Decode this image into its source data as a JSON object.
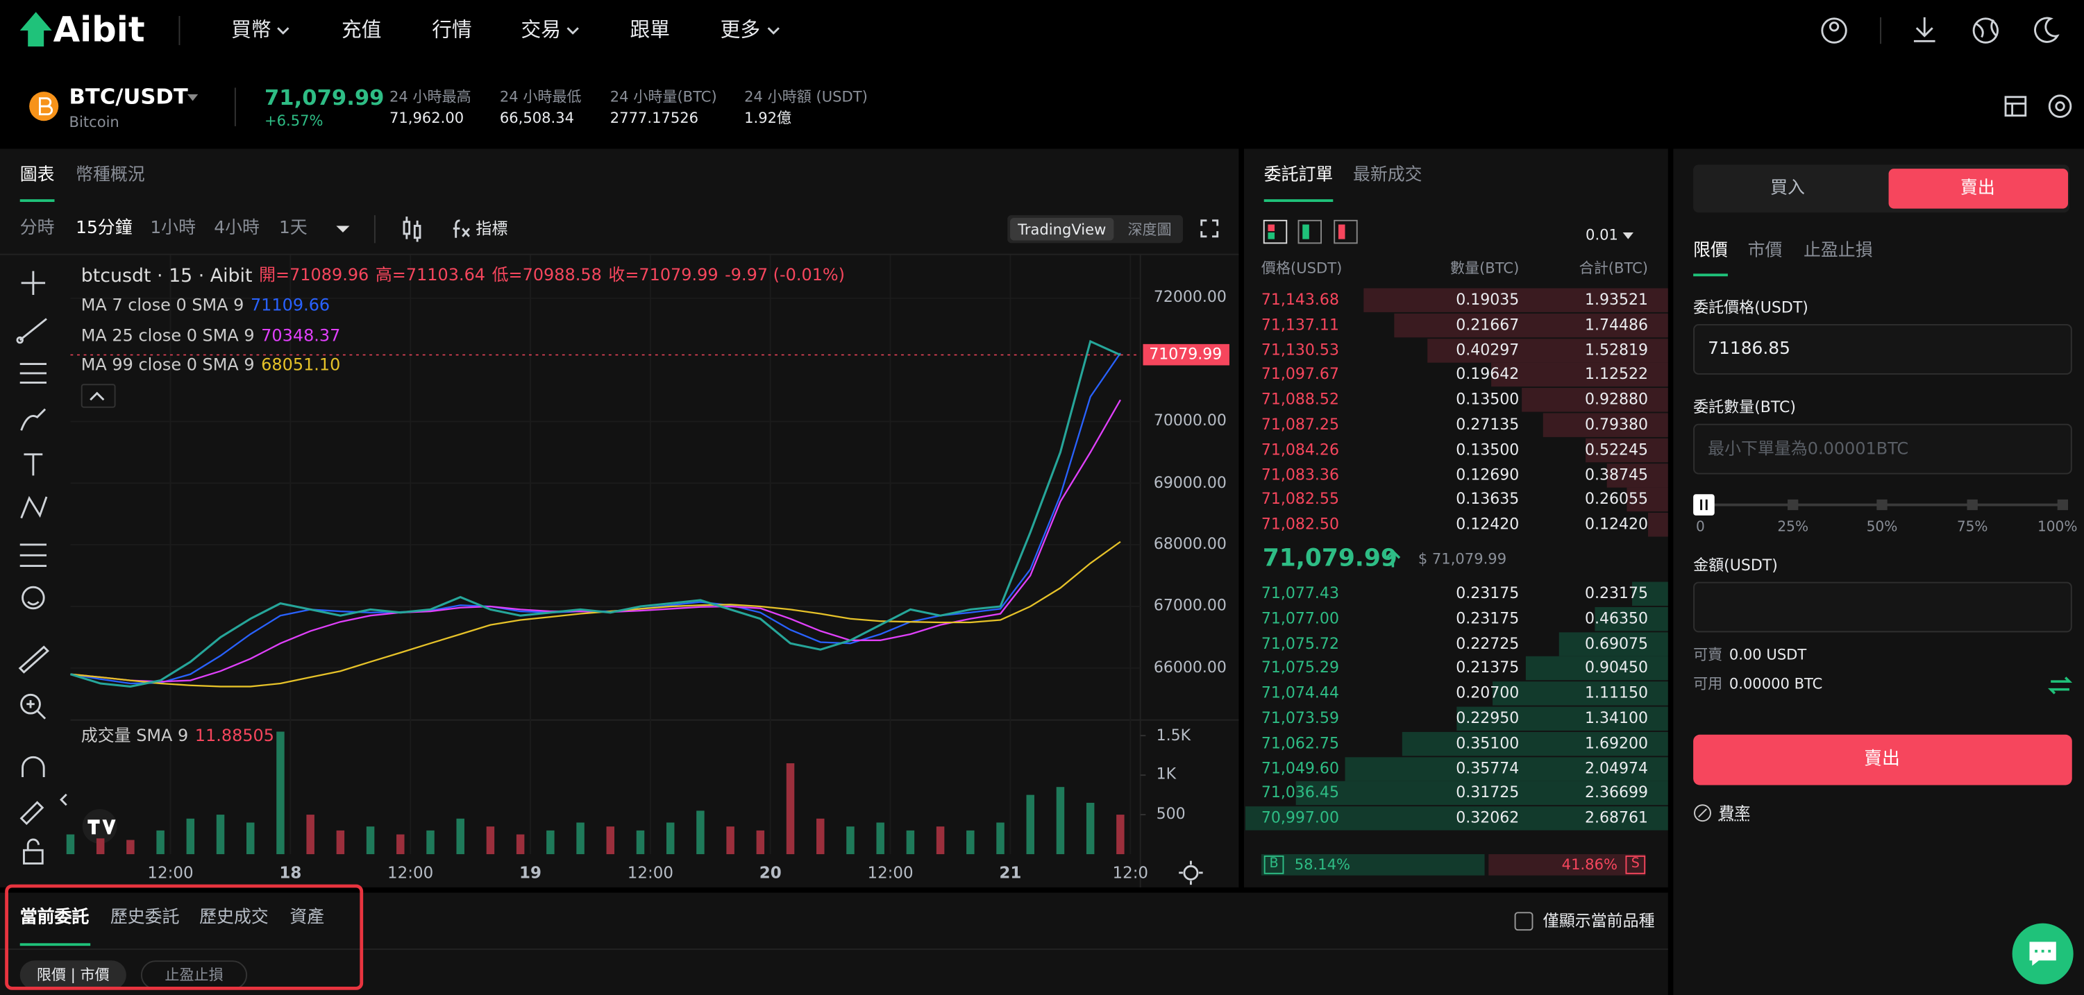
{
  "nav": {
    "logo": "Aibit",
    "items": [
      "買幣",
      "充值",
      "行情",
      "交易",
      "跟單",
      "更多"
    ]
  },
  "ticker": {
    "pair": "BTC/USDT",
    "name": "Bitcoin",
    "price": "71,079.99",
    "change": "+6.57%",
    "stats": [
      {
        "label": "24 小時最高",
        "value": "71,962.00"
      },
      {
        "label": "24 小時最低",
        "value": "66,508.34"
      },
      {
        "label": "24 小時量(BTC)",
        "value": "2777.17526"
      },
      {
        "label": "24 小時額 (USDT)",
        "value": "1.92億"
      }
    ]
  },
  "chart_panel": {
    "tabs": [
      "圖表",
      "幣種概況"
    ],
    "intervals": [
      "分時",
      "15分鐘",
      "1小時",
      "4小時",
      "1天"
    ],
    "indicator": "指標",
    "views": [
      "TradingView",
      "深度圖"
    ],
    "legend": {
      "symbol": "btcusdt · 15 · Aibit",
      "open": "開=71089.96",
      "high": "高=71103.64",
      "low": "低=70988.58",
      "close": "收=71079.99",
      "change": "-9.97 (-0.01%)"
    }
  },
  "chart_data": [
    {
      "type": "line",
      "x": [
        0,
        3,
        6,
        9,
        12,
        15,
        18,
        21,
        24,
        27,
        30,
        33,
        36,
        39,
        42,
        45,
        48,
        51,
        54,
        57,
        60,
        63,
        66,
        69,
        72,
        75,
        78,
        81,
        84,
        87,
        90,
        93,
        96,
        99,
        102,
        105
      ],
      "values": [
        65900,
        65750,
        65700,
        65800,
        66100,
        66500,
        66800,
        67050,
        66950,
        66850,
        66950,
        66900,
        66950,
        67150,
        66950,
        66850,
        66900,
        66950,
        66900,
        67000,
        67050,
        67100,
        66950,
        66800,
        66400,
        66300,
        66450,
        66700,
        66950,
        66850,
        66950,
        67000,
        68200,
        69500,
        71300,
        71080
      ],
      "color": "#26a69a",
      "series": [
        {
          "name": "MA 7 close 0 SMA 9",
          "color": "#2962ff",
          "last_label": "71109.66",
          "values": [
            65900,
            65820,
            65750,
            65760,
            65900,
            66200,
            66550,
            66850,
            66950,
            66920,
            66900,
            66910,
            66930,
            67020,
            67000,
            66920,
            66900,
            66920,
            66920,
            66960,
            67020,
            67070,
            67020,
            66900,
            66620,
            66420,
            66400,
            66550,
            66750,
            66850,
            66900,
            66960,
            67600,
            68800,
            70400,
            71110
          ]
        },
        {
          "name": "MA 25 close 0 SMA 9",
          "color": "#e040fb",
          "last_label": "70348.37",
          "values": [
            65900,
            65850,
            65800,
            65780,
            65800,
            65950,
            66150,
            66400,
            66600,
            66750,
            66850,
            66900,
            66920,
            66980,
            67000,
            66950,
            66920,
            66920,
            66910,
            66930,
            66960,
            66990,
            67000,
            66970,
            66800,
            66600,
            66450,
            66450,
            66550,
            66700,
            66800,
            66880,
            67500,
            68700,
            69500,
            70350
          ]
        },
        {
          "name": "MA 99 close 0 SMA 9",
          "color": "#e6c229",
          "last_label": "68051.10",
          "values": [
            65900,
            65850,
            65800,
            65750,
            65720,
            65700,
            65700,
            65750,
            65850,
            65950,
            66100,
            66250,
            66400,
            66550,
            66700,
            66780,
            66830,
            66880,
            66920,
            66960,
            67000,
            67020,
            67030,
            67000,
            66950,
            66880,
            66800,
            66760,
            66750,
            66740,
            66740,
            66780,
            67000,
            67300,
            67700,
            68050
          ]
        }
      ],
      "xlim": [
        0,
        107
      ],
      "xticks": [
        {
          "value": 10,
          "label": "12:00"
        },
        {
          "value": 22,
          "label": "18"
        },
        {
          "value": 34,
          "label": "12:00"
        },
        {
          "value": 46,
          "label": "19"
        },
        {
          "value": 58,
          "label": "12:00"
        },
        {
          "value": 70,
          "label": "20"
        },
        {
          "value": 82,
          "label": "12:00"
        },
        {
          "value": 94,
          "label": "21"
        },
        {
          "value": 106,
          "label": "12:0"
        }
      ],
      "ylim": [
        65200,
        72700
      ],
      "yticks": [
        {
          "value": 72000,
          "label": "72000.00"
        },
        {
          "value": 70000,
          "label": "70000.00"
        },
        {
          "value": 69000,
          "label": "69000.00"
        },
        {
          "value": 68000,
          "label": "68000.00"
        },
        {
          "value": 67000,
          "label": "67000.00"
        },
        {
          "value": 66000,
          "label": "66000.00"
        }
      ],
      "last_price": 71079.99,
      "grid": true
    },
    {
      "type": "bar",
      "label": "成交量 SMA 9",
      "last_label": "11.88505",
      "x": [
        0,
        3,
        6,
        9,
        12,
        15,
        18,
        21,
        24,
        27,
        30,
        33,
        36,
        39,
        42,
        45,
        48,
        51,
        54,
        57,
        60,
        63,
        66,
        69,
        72,
        75,
        78,
        81,
        84,
        87,
        90,
        93,
        96,
        99,
        102,
        105
      ],
      "values": [
        250,
        200,
        180,
        300,
        450,
        500,
        400,
        1550,
        500,
        300,
        350,
        250,
        300,
        450,
        350,
        250,
        300,
        400,
        350,
        300,
        400,
        550,
        350,
        300,
        1150,
        450,
        350,
        400,
        300,
        350,
        300,
        400,
        750,
        850,
        650,
        500
      ],
      "xlim": [
        0,
        107
      ],
      "ylim": [
        0,
        1630
      ],
      "yticks": [
        {
          "value": 1500,
          "label": "1.5K"
        },
        {
          "value": 1000,
          "label": "1K"
        },
        500
      ]
    }
  ],
  "order_book": {
    "tabs": [
      "委託訂單",
      "最新成交"
    ],
    "step": "0.01",
    "headers": [
      "價格(USDT)",
      "數量(BTC)",
      "合計(BTC)"
    ],
    "asks": [
      [
        "71,143.68",
        "0.19035",
        "1.93521"
      ],
      [
        "71,137.11",
        "0.21667",
        "1.74486"
      ],
      [
        "71,130.53",
        "0.40297",
        "1.52819"
      ],
      [
        "71,097.67",
        "0.19642",
        "1.12522"
      ],
      [
        "71,088.52",
        "0.13500",
        "0.92880"
      ],
      [
        "71,087.25",
        "0.27135",
        "0.79380"
      ],
      [
        "71,084.26",
        "0.13500",
        "0.52245"
      ],
      [
        "71,083.36",
        "0.12690",
        "0.38745"
      ],
      [
        "71,082.55",
        "0.13635",
        "0.26055"
      ],
      [
        "71,082.50",
        "0.12420",
        "0.12420"
      ]
    ],
    "last": "71,079.99",
    "last_usd": "$ 71,079.99",
    "bids": [
      [
        "71,077.43",
        "0.23175",
        "0.23175"
      ],
      [
        "71,077.00",
        "0.23175",
        "0.46350"
      ],
      [
        "71,075.72",
        "0.22725",
        "0.69075"
      ],
      [
        "71,075.29",
        "0.21375",
        "0.90450"
      ],
      [
        "71,074.44",
        "0.20700",
        "1.11150"
      ],
      [
        "71,073.59",
        "0.22950",
        "1.34100"
      ],
      [
        "71,062.75",
        "0.35100",
        "1.69200"
      ],
      [
        "71,049.60",
        "0.35774",
        "2.04974"
      ],
      [
        "71,036.45",
        "0.31725",
        "2.36699"
      ],
      [
        "70,997.00",
        "0.32062",
        "2.68761"
      ]
    ],
    "ratio": {
      "buy_tag": "B",
      "buy": "58.14%",
      "sell": "41.86%",
      "sell_tag": "S"
    }
  },
  "order_form": {
    "sides": [
      "買入",
      "賣出"
    ],
    "types": [
      "限價",
      "市價",
      "止盈止損"
    ],
    "price_label": "委託價格(USDT)",
    "price": "71186.85",
    "qty_label": "委託數量(BTC)",
    "qty_placeholder": "最小下單量為0.00001BTC",
    "slider": [
      "0",
      "25%",
      "50%",
      "75%",
      "100%"
    ],
    "amount_label": "金額(USDT)",
    "sellable_label": "可賣",
    "sellable": "0.00 USDT",
    "available_label": "可用",
    "available": "0.00000 BTC",
    "submit": "賣出",
    "fee": "費率"
  },
  "orders": {
    "tabs": [
      "當前委託",
      "歷史委託",
      "歷史成交",
      "資產"
    ],
    "filters": [
      "限價 | 市價",
      "止盈止損"
    ],
    "only_current": "僅顯示當前品種"
  }
}
